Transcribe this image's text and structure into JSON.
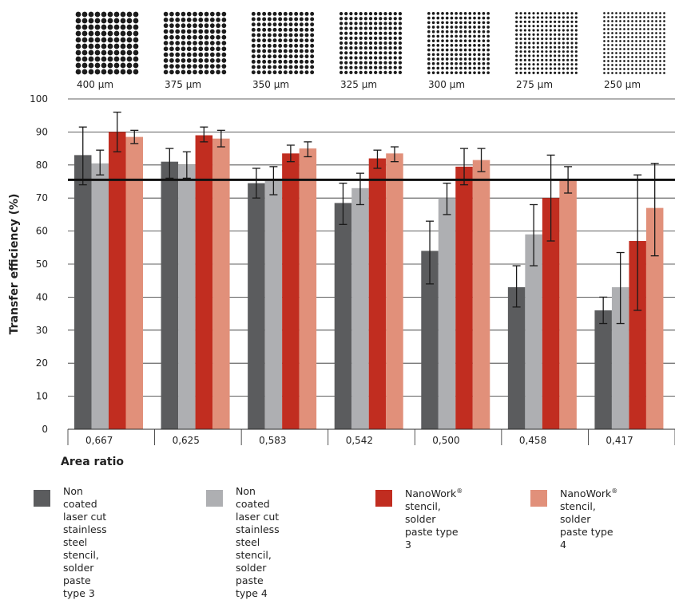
{
  "chart_data": {
    "type": "bar",
    "xlabel": "Area ratio",
    "ylabel": "Transfer efficiency (%)",
    "ylim": [
      0,
      100
    ],
    "yticks": [
      "0",
      "10",
      "20",
      "30",
      "40",
      "50",
      "60",
      "70",
      "80",
      "90",
      "100"
    ],
    "grid": true,
    "reference_line": 75.5,
    "categories": [
      "0,667",
      "0,625",
      "0,583",
      "0,542",
      "0,500",
      "0,458",
      "0,417"
    ],
    "aperture_labels": [
      "400 µm",
      "375 µm",
      "350 µm",
      "325 µm",
      "300 µm",
      "275 µm",
      "250 µm"
    ],
    "aperture_dot_grid": [
      10,
      11,
      12,
      13,
      14,
      15,
      16
    ],
    "series": [
      {
        "color": "#5b5c5e",
        "values": [
          83.0,
          81.0,
          74.5,
          68.5,
          54.0,
          43.0,
          36.0
        ],
        "error_low": [
          74.0,
          76.0,
          70.0,
          62.0,
          44.0,
          37.0,
          32.0
        ],
        "error_high": [
          91.5,
          85.0,
          79.0,
          74.5,
          63.0,
          49.5,
          40.0
        ]
      },
      {
        "color": "#aeafb2",
        "values": [
          80.5,
          80.0,
          75.5,
          73.0,
          70.0,
          59.0,
          43.0
        ],
        "error_low": [
          77.0,
          76.0,
          71.0,
          68.0,
          65.0,
          49.5,
          32.0
        ],
        "error_high": [
          84.5,
          84.0,
          79.5,
          77.5,
          74.5,
          68.0,
          53.5
        ]
      },
      {
        "color": "#c12d20",
        "values": [
          90.0,
          89.0,
          83.5,
          82.0,
          79.5,
          70.0,
          57.0
        ],
        "error_low": [
          84.0,
          87.0,
          81.0,
          79.0,
          74.0,
          57.0,
          36.0
        ],
        "error_high": [
          96.0,
          91.5,
          86.0,
          84.5,
          85.0,
          83.0,
          77.0
        ]
      },
      {
        "color": "#e1907a",
        "values": [
          88.5,
          88.0,
          85.0,
          83.5,
          81.5,
          75.5,
          67.0
        ],
        "error_low": [
          86.5,
          85.5,
          82.5,
          81.0,
          78.0,
          71.5,
          52.5
        ],
        "error_high": [
          90.5,
          90.5,
          87.0,
          85.5,
          85.0,
          79.5,
          80.5
        ]
      }
    ]
  },
  "legend": [
    {
      "text": "Non coated laser cut\nstainless steel stencil,\nsolder paste type 3",
      "sup": "",
      "color": "#5b5c5e"
    },
    {
      "text": "Non coated laser cut\nstainless steel stencil,\nsolder paste type 4",
      "sup": "",
      "color": "#aeafb2"
    },
    {
      "text": "NanoWork",
      "sup": "®",
      "after": " stencil,\nsolder paste type 3",
      "color": "#c12d20"
    },
    {
      "text": "NanoWork",
      "sup": "®",
      "after": " stencil,\nsolder paste type 4",
      "color": "#e1907a"
    }
  ]
}
